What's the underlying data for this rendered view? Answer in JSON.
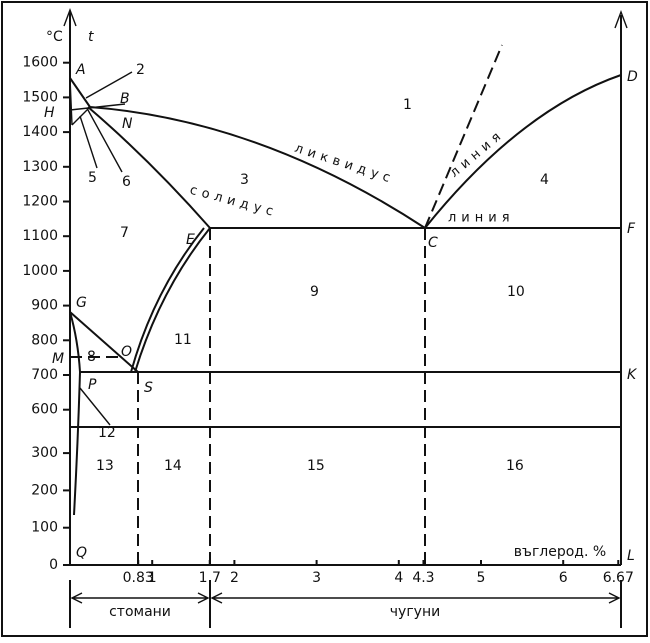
{
  "y_axis": {
    "unit": "°C",
    "symbol": "t",
    "ticks_upper": [
      600,
      700,
      800,
      900,
      1000,
      1100,
      1200,
      1300,
      1400,
      1500,
      1600
    ],
    "ticks_lower": [
      0,
      100,
      200,
      300
    ]
  },
  "x_axis": {
    "ticks": [
      0.83,
      1,
      1.7,
      2,
      3,
      4,
      4.3,
      5,
      6,
      6.67
    ],
    "label": "въглерод. %"
  },
  "points": [
    "A",
    "B",
    "H",
    "N",
    "E",
    "C",
    "D",
    "F",
    "G",
    "O",
    "M",
    "P",
    "S",
    "K",
    "Q",
    "L"
  ],
  "regions": [
    "1",
    "2",
    "3",
    "4",
    "5",
    "6",
    "7",
    "8",
    "9",
    "10",
    "11",
    "12",
    "13",
    "14",
    "15",
    "16"
  ],
  "curves": {
    "liquidus": "ликвидус",
    "liquidus_line": "линия",
    "solidus": "солидус",
    "solidus_line": "линия"
  },
  "ranges": {
    "steels": "стомани",
    "cast_irons": "чугуни"
  }
}
